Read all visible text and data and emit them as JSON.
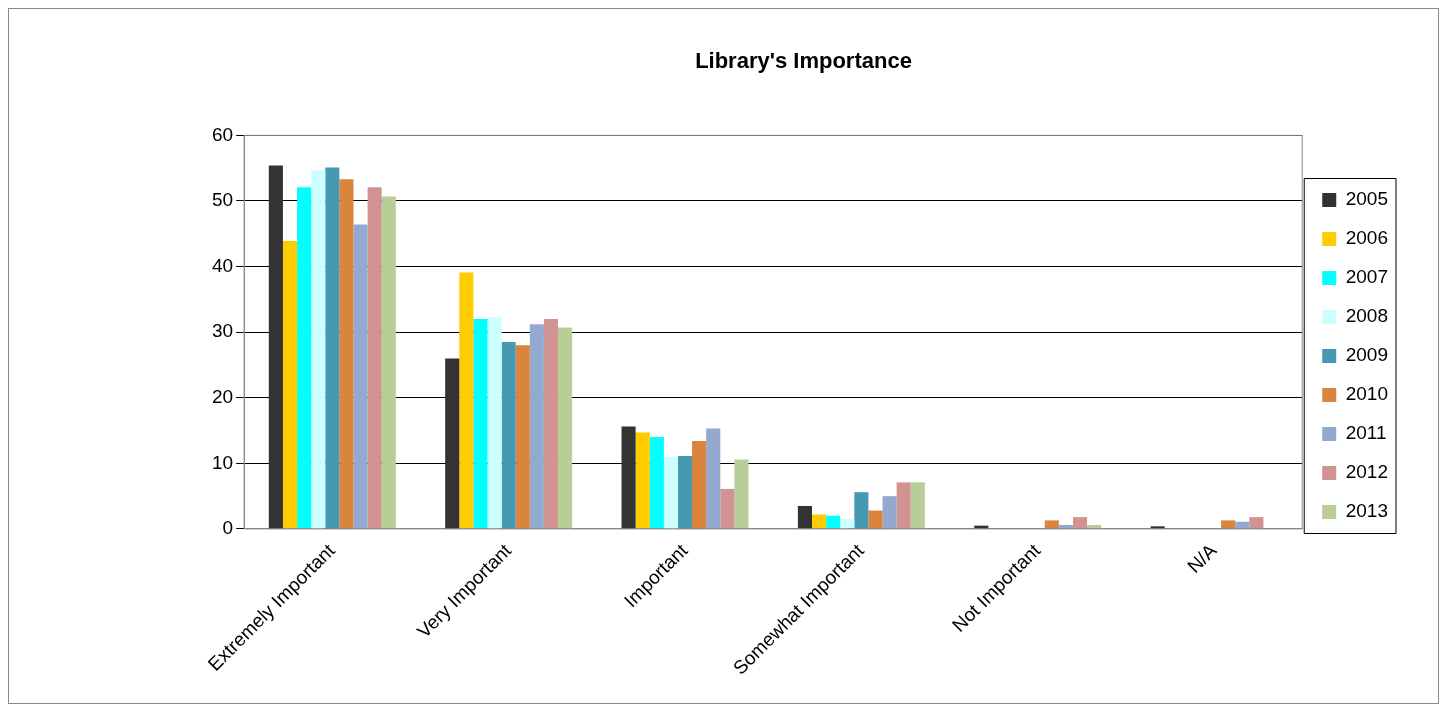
{
  "chart_data": {
    "type": "bar",
    "title": "Library's Importance",
    "categories": [
      "Extremely Important",
      "Very Important",
      "Important",
      "Somewhat Important",
      "Not Important",
      "N/A"
    ],
    "series": [
      {
        "name": "2005",
        "color": "#333333",
        "values": [
          55.4,
          26.0,
          15.6,
          3.5,
          0.5,
          0.4
        ]
      },
      {
        "name": "2006",
        "color": "#ffcc00",
        "values": [
          43.9,
          39.1,
          14.7,
          2.2,
          0,
          0
        ]
      },
      {
        "name": "2007",
        "color": "#00ffff",
        "values": [
          52.1,
          32.0,
          14.0,
          2.0,
          0,
          0
        ]
      },
      {
        "name": "2008",
        "color": "#ccffff",
        "values": [
          54.7,
          32.3,
          11.0,
          1.5,
          0,
          0
        ]
      },
      {
        "name": "2009",
        "color": "#4599b0",
        "values": [
          55.1,
          28.5,
          11.1,
          5.6,
          0,
          0
        ]
      },
      {
        "name": "2010",
        "color": "#db843d",
        "values": [
          53.3,
          28.0,
          13.4,
          2.8,
          1.3,
          1.3
        ]
      },
      {
        "name": "2011",
        "color": "#93a9cf",
        "values": [
          46.4,
          31.2,
          15.3,
          5.0,
          0.6,
          1.1
        ]
      },
      {
        "name": "2012",
        "color": "#d19392",
        "values": [
          52.1,
          32.0,
          6.1,
          7.1,
          1.8,
          1.8
        ]
      },
      {
        "name": "2013",
        "color": "#b9cd96",
        "values": [
          50.7,
          30.7,
          10.6,
          7.1,
          0.6,
          null
        ]
      }
    ],
    "ylim": [
      0,
      60
    ],
    "yticks": [
      0,
      10,
      20,
      30,
      40,
      50,
      60
    ],
    "grid": "y",
    "legend": "right"
  }
}
